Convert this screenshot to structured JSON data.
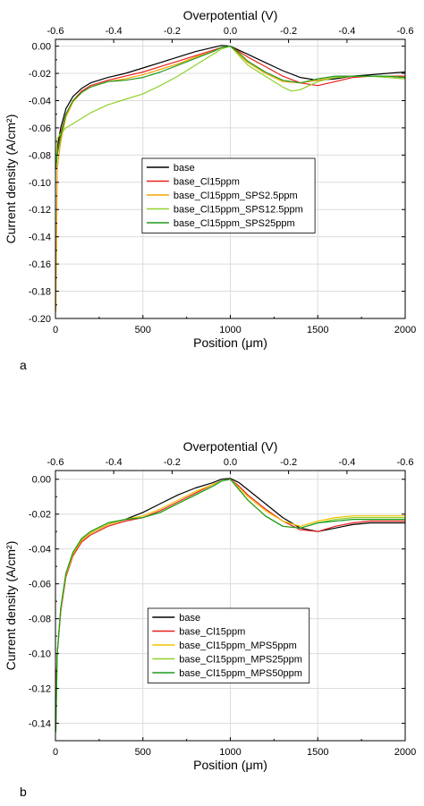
{
  "chart_data": [
    {
      "type": "line",
      "panel_label": "a",
      "xlabel": "Position (μm)",
      "ylabel": "Current density (A/cm²)",
      "top_xlabel": "Overpotential (V)",
      "xlim": [
        0,
        2000
      ],
      "ylim": [
        -0.2,
        0.005
      ],
      "x_ticks": [
        0,
        500,
        1000,
        1500,
        2000
      ],
      "x_tick_labels": [
        "0",
        "500",
        "1000",
        "1500",
        "2000"
      ],
      "y_ticks": [
        0,
        -0.02,
        -0.04,
        -0.06,
        -0.08,
        -0.1,
        -0.12,
        -0.14,
        -0.16,
        -0.18,
        -0.2
      ],
      "y_tick_labels": [
        "0.00",
        "-0.02",
        "-0.04",
        "-0.06",
        "-0.08",
        "-0.10",
        "-0.12",
        "-0.14",
        "-0.16",
        "-0.18",
        "-0.20"
      ],
      "top_ticks_position": [
        0,
        333,
        667,
        1000,
        1333,
        1667,
        2000
      ],
      "top_tick_labels": [
        "-0.6",
        "-0.4",
        "-0.2",
        "0.0",
        "-0.2",
        "-0.4",
        "-0.6"
      ],
      "grid": true,
      "legend_placement": "center",
      "series": [
        {
          "name": "base",
          "color": "#000000",
          "x": [
            2,
            10,
            30,
            60,
            100,
            150,
            200,
            300,
            400,
            500,
            600,
            700,
            800,
            900,
            950,
            1000,
            1050,
            1100,
            1200,
            1300,
            1400,
            1500,
            1600,
            1700,
            1800,
            1900,
            2000
          ],
          "y": [
            -0.09,
            -0.075,
            -0.06,
            -0.046,
            -0.037,
            -0.031,
            -0.027,
            -0.023,
            -0.02,
            -0.016,
            -0.012,
            -0.008,
            -0.004,
            -0.001,
            0.0005,
            0.0,
            -0.003,
            -0.006,
            -0.012,
            -0.018,
            -0.023,
            -0.025,
            -0.024,
            -0.022,
            -0.021,
            -0.02,
            -0.019
          ]
        },
        {
          "name": "base_Cl15ppm",
          "color": "#e8201c",
          "x": [
            2,
            10,
            30,
            60,
            100,
            150,
            200,
            300,
            400,
            500,
            600,
            700,
            800,
            900,
            950,
            1000,
            1050,
            1100,
            1200,
            1300,
            1400,
            1500,
            1600,
            1700,
            1800,
            1900,
            2000
          ],
          "y": [
            -0.09,
            -0.078,
            -0.064,
            -0.05,
            -0.04,
            -0.033,
            -0.029,
            -0.025,
            -0.022,
            -0.019,
            -0.015,
            -0.011,
            -0.007,
            -0.003,
            -0.001,
            0.0,
            -0.004,
            -0.008,
            -0.015,
            -0.022,
            -0.027,
            -0.029,
            -0.026,
            -0.023,
            -0.022,
            -0.022,
            -0.022
          ]
        },
        {
          "name": "base_Cl15ppm_SPS2.5ppm",
          "color": "#f5a400",
          "x": [
            2,
            10,
            30,
            60,
            100,
            150,
            200,
            300,
            400,
            500,
            600,
            700,
            800,
            900,
            950,
            1000,
            1050,
            1100,
            1200,
            1300,
            1400,
            1500,
            1600,
            1700,
            1800,
            1900,
            2000
          ],
          "y": [
            -0.195,
            -0.09,
            -0.07,
            -0.052,
            -0.041,
            -0.034,
            -0.03,
            -0.026,
            -0.024,
            -0.021,
            -0.017,
            -0.013,
            -0.008,
            -0.004,
            -0.001,
            0.0,
            -0.006,
            -0.012,
            -0.02,
            -0.026,
            -0.027,
            -0.025,
            -0.023,
            -0.022,
            -0.022,
            -0.022,
            -0.023
          ]
        },
        {
          "name": "base_Cl15ppm_SPS12.5ppm",
          "color": "#8fd12a",
          "x": [
            2,
            10,
            30,
            60,
            100,
            150,
            200,
            300,
            400,
            500,
            600,
            700,
            800,
            900,
            950,
            1000,
            1050,
            1100,
            1200,
            1300,
            1350,
            1400,
            1500,
            1600,
            1700,
            1800,
            1900,
            2000
          ],
          "y": [
            -0.09,
            -0.068,
            -0.064,
            -0.06,
            -0.057,
            -0.053,
            -0.049,
            -0.043,
            -0.039,
            -0.035,
            -0.029,
            -0.022,
            -0.014,
            -0.006,
            -0.002,
            0.0,
            -0.007,
            -0.014,
            -0.022,
            -0.03,
            -0.033,
            -0.032,
            -0.026,
            -0.023,
            -0.022,
            -0.022,
            -0.023,
            -0.024
          ]
        },
        {
          "name": "base_Cl15ppm_SPS25ppm",
          "color": "#1e9a1e",
          "x": [
            2,
            10,
            30,
            60,
            100,
            150,
            200,
            300,
            400,
            500,
            600,
            700,
            800,
            900,
            950,
            1000,
            1050,
            1100,
            1200,
            1300,
            1400,
            1500,
            1600,
            1700,
            1800,
            1900,
            2000
          ],
          "y": [
            -0.09,
            -0.08,
            -0.066,
            -0.05,
            -0.04,
            -0.034,
            -0.03,
            -0.026,
            -0.025,
            -0.023,
            -0.019,
            -0.014,
            -0.009,
            -0.004,
            -0.001,
            0.0,
            -0.005,
            -0.011,
            -0.019,
            -0.025,
            -0.027,
            -0.024,
            -0.022,
            -0.022,
            -0.022,
            -0.022,
            -0.023
          ]
        }
      ]
    },
    {
      "type": "line",
      "panel_label": "b",
      "xlabel": "Position (μm)",
      "ylabel": "Current density (A/cm²)",
      "top_xlabel": "Overpotential (V)",
      "xlim": [
        0,
        2000
      ],
      "ylim": [
        -0.15,
        0.005
      ],
      "x_ticks": [
        0,
        500,
        1000,
        1500,
        2000
      ],
      "x_tick_labels": [
        "0",
        "500",
        "1000",
        "1500",
        "2000"
      ],
      "y_ticks": [
        0,
        -0.02,
        -0.04,
        -0.06,
        -0.08,
        -0.1,
        -0.12,
        -0.14
      ],
      "y_tick_labels": [
        "0.00",
        "-0.02",
        "-0.04",
        "-0.06",
        "-0.08",
        "-0.10",
        "-0.12",
        "-0.14"
      ],
      "top_ticks_position": [
        0,
        333,
        667,
        1000,
        1333,
        1667,
        2000
      ],
      "top_tick_labels": [
        "-0.6",
        "-0.4",
        "-0.2",
        "0.0",
        "-0.2",
        "-0.4",
        "-0.6"
      ],
      "grid": true,
      "legend_placement": "center",
      "series": [
        {
          "name": "base",
          "color": "#000000",
          "x": [
            2,
            10,
            30,
            60,
            100,
            150,
            200,
            300,
            400,
            500,
            600,
            700,
            800,
            900,
            950,
            1000,
            1050,
            1100,
            1200,
            1300,
            1400,
            1500,
            1600,
            1700,
            1800,
            1900,
            2000
          ],
          "y": [
            -0.13,
            -0.1,
            -0.075,
            -0.055,
            -0.043,
            -0.035,
            -0.031,
            -0.026,
            -0.023,
            -0.019,
            -0.014,
            -0.009,
            -0.005,
            -0.002,
            0.0,
            0.0005,
            -0.002,
            -0.006,
            -0.014,
            -0.022,
            -0.028,
            -0.03,
            -0.028,
            -0.026,
            -0.025,
            -0.025,
            -0.025
          ]
        },
        {
          "name": "base_Cl15ppm",
          "color": "#e8201c",
          "x": [
            2,
            10,
            30,
            60,
            100,
            150,
            200,
            300,
            400,
            500,
            600,
            700,
            800,
            900,
            950,
            1000,
            1050,
            1100,
            1200,
            1300,
            1400,
            1500,
            1600,
            1700,
            1800,
            1900,
            2000
          ],
          "y": [
            -0.125,
            -0.1,
            -0.076,
            -0.056,
            -0.044,
            -0.036,
            -0.032,
            -0.027,
            -0.024,
            -0.022,
            -0.018,
            -0.013,
            -0.008,
            -0.003,
            -0.001,
            0.0,
            -0.004,
            -0.009,
            -0.017,
            -0.024,
            -0.029,
            -0.03,
            -0.027,
            -0.025,
            -0.024,
            -0.024,
            -0.024
          ]
        },
        {
          "name": "base_Cl15ppm_MPS5ppm",
          "color": "#f2c200",
          "x": [
            2,
            10,
            30,
            60,
            100,
            150,
            200,
            300,
            400,
            500,
            600,
            700,
            800,
            900,
            950,
            1000,
            1050,
            1100,
            1200,
            1300,
            1400,
            1500,
            1600,
            1700,
            1800,
            1900,
            2000
          ],
          "y": [
            -0.145,
            -0.1,
            -0.075,
            -0.055,
            -0.043,
            -0.035,
            -0.031,
            -0.026,
            -0.023,
            -0.021,
            -0.017,
            -0.012,
            -0.007,
            -0.003,
            -0.001,
            0.0,
            -0.005,
            -0.01,
            -0.018,
            -0.024,
            -0.027,
            -0.024,
            -0.022,
            -0.021,
            -0.021,
            -0.021,
            -0.021
          ]
        },
        {
          "name": "base_Cl15ppm_MPS25ppm",
          "color": "#8fd12a",
          "x": [
            2,
            10,
            30,
            60,
            100,
            150,
            200,
            300,
            400,
            500,
            600,
            700,
            800,
            900,
            950,
            1000,
            1050,
            1100,
            1200,
            1300,
            1400,
            1500,
            1600,
            1700,
            1800,
            1900,
            2000
          ],
          "y": [
            -0.14,
            -0.1,
            -0.074,
            -0.054,
            -0.042,
            -0.034,
            -0.03,
            -0.025,
            -0.023,
            -0.022,
            -0.019,
            -0.014,
            -0.009,
            -0.004,
            -0.001,
            0.0,
            -0.006,
            -0.012,
            -0.021,
            -0.027,
            -0.028,
            -0.025,
            -0.023,
            -0.022,
            -0.022,
            -0.022,
            -0.022
          ]
        },
        {
          "name": "base_Cl15ppm_MPS50ppm",
          "color": "#1e9a1e",
          "x": [
            2,
            10,
            30,
            60,
            100,
            150,
            200,
            300,
            400,
            500,
            600,
            700,
            800,
            900,
            950,
            1000,
            1050,
            1100,
            1200,
            1300,
            1400,
            1500,
            1600,
            1700,
            1800,
            1900,
            2000
          ],
          "y": [
            -0.145,
            -0.1,
            -0.074,
            -0.054,
            -0.042,
            -0.034,
            -0.03,
            -0.025,
            -0.023,
            -0.022,
            -0.019,
            -0.014,
            -0.009,
            -0.004,
            -0.001,
            0.0,
            -0.006,
            -0.012,
            -0.021,
            -0.027,
            -0.028,
            -0.025,
            -0.024,
            -0.023,
            -0.023,
            -0.023,
            -0.023
          ]
        }
      ]
    }
  ]
}
